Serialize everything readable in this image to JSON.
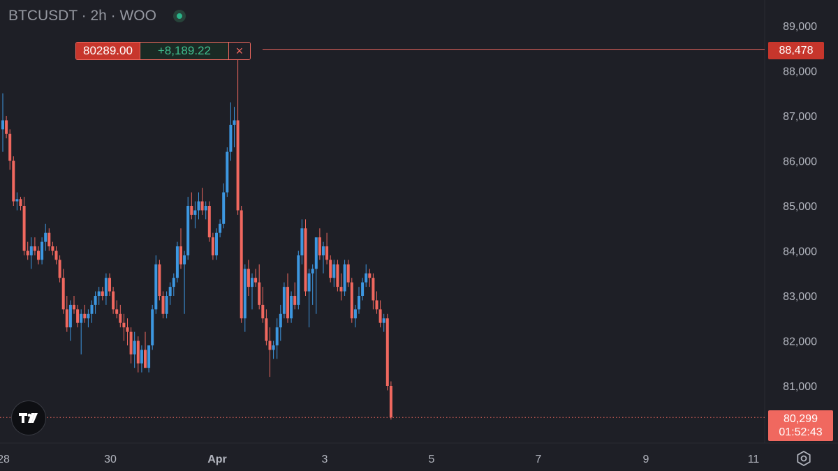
{
  "header": {
    "symbol_title": "BTCUSDT · 2h · WOO",
    "status_icon": "market-open-dot-icon"
  },
  "order_line": {
    "price": "80289.00",
    "pnl": "+8,189.22",
    "close_glyph": "×",
    "level_label": "88,478"
  },
  "current_price": {
    "price": "80,299",
    "countdown": "01:52:43"
  },
  "icons": {
    "logo": "tradingview-logo-icon",
    "settings": "settings-gear-icon"
  },
  "colors": {
    "up": "#3d97e0",
    "down": "#f0685f",
    "background": "#1e1f26",
    "axis_text": "#b2b5be"
  },
  "chart_data": {
    "type": "candlestick",
    "y_axis": {
      "ticks": [
        81000,
        82000,
        83000,
        84000,
        85000,
        86000,
        87000,
        88000,
        89000
      ],
      "tick_labels": [
        "81,000",
        "82,000",
        "83,000",
        "84,000",
        "85,000",
        "86,000",
        "87,000",
        "88,000",
        "89,000"
      ],
      "range": [
        79800,
        89500
      ]
    },
    "x_axis": {
      "tick_labels": [
        "28",
        "30",
        "Apr",
        "3",
        "5",
        "7",
        "9",
        "11"
      ]
    },
    "candles_ohlc": [
      [
        86700,
        87500,
        86200,
        86900
      ],
      [
        86900,
        87000,
        86500,
        86600
      ],
      [
        86600,
        86700,
        85800,
        86000
      ],
      [
        86000,
        86100,
        85000,
        85100
      ],
      [
        85100,
        85300,
        84900,
        85150
      ],
      [
        85150,
        85200,
        84900,
        85000
      ],
      [
        85000,
        85200,
        83900,
        84000
      ],
      [
        84000,
        84200,
        83800,
        83900
      ],
      [
        83900,
        84300,
        83600,
        84100
      ],
      [
        84100,
        84300,
        83900,
        84000
      ],
      [
        84000,
        84100,
        83700,
        83800
      ],
      [
        83800,
        84300,
        83700,
        84200
      ],
      [
        84200,
        84600,
        84000,
        84400
      ],
      [
        84400,
        84500,
        84000,
        84100
      ],
      [
        84100,
        84200,
        83900,
        84000
      ],
      [
        84000,
        84100,
        83700,
        83800
      ],
      [
        83800,
        83900,
        83300,
        83400
      ],
      [
        83400,
        83600,
        82600,
        82700
      ],
      [
        82700,
        83000,
        82200,
        82300
      ],
      [
        82300,
        82900,
        82000,
        82800
      ],
      [
        82800,
        83000,
        82600,
        82700
      ],
      [
        82700,
        82800,
        82300,
        82400
      ],
      [
        82400,
        82700,
        81700,
        82600
      ],
      [
        82600,
        82800,
        82400,
        82500
      ],
      [
        82500,
        82700,
        82300,
        82600
      ],
      [
        82600,
        82900,
        82400,
        82800
      ],
      [
        82800,
        83100,
        82600,
        83000
      ],
      [
        83000,
        83200,
        82800,
        83100
      ],
      [
        83100,
        83200,
        82900,
        83000
      ],
      [
        83000,
        83500,
        82800,
        83400
      ],
      [
        83400,
        83500,
        83000,
        83100
      ],
      [
        83100,
        83200,
        82600,
        82700
      ],
      [
        82700,
        82900,
        82500,
        82600
      ],
      [
        82600,
        82800,
        82300,
        82400
      ],
      [
        82400,
        82600,
        82000,
        82300
      ],
      [
        82300,
        82500,
        81900,
        82200
      ],
      [
        82200,
        82300,
        81500,
        81700
      ],
      [
        81700,
        82200,
        81400,
        82000
      ],
      [
        82000,
        82100,
        81300,
        81500
      ],
      [
        81500,
        81900,
        81300,
        81800
      ],
      [
        81800,
        82200,
        81500,
        81400
      ],
      [
        81400,
        81900,
        81300,
        81900
      ],
      [
        81900,
        82800,
        81800,
        82700
      ],
      [
        82700,
        83900,
        82600,
        83700
      ],
      [
        83700,
        83800,
        82900,
        83000
      ],
      [
        83000,
        83100,
        82500,
        82600
      ],
      [
        82600,
        83100,
        82500,
        83000
      ],
      [
        83000,
        83300,
        82800,
        83200
      ],
      [
        83200,
        83500,
        83000,
        83400
      ],
      [
        83400,
        84200,
        83300,
        84100
      ],
      [
        84100,
        84500,
        83600,
        83700
      ],
      [
        83700,
        84000,
        82600,
        83900
      ],
      [
        83900,
        85200,
        83800,
        85000
      ],
      [
        85000,
        85300,
        84700,
        84800
      ],
      [
        84800,
        85100,
        84500,
        84900
      ],
      [
        84900,
        85300,
        84700,
        85100
      ],
      [
        85100,
        85400,
        84800,
        84900
      ],
      [
        84900,
        85100,
        84700,
        85000
      ],
      [
        85000,
        85100,
        84200,
        84300
      ],
      [
        84300,
        84400,
        83800,
        83900
      ],
      [
        83900,
        84500,
        83800,
        84400
      ],
      [
        84400,
        84700,
        84300,
        84600
      ],
      [
        84600,
        85500,
        84500,
        85300
      ],
      [
        85300,
        86300,
        85200,
        86200
      ],
      [
        86200,
        87300,
        86000,
        86800
      ],
      [
        86800,
        87200,
        86300,
        86900
      ],
      [
        86900,
        88478,
        84800,
        84900
      ],
      [
        84900,
        85000,
        82400,
        82500
      ],
      [
        82500,
        83700,
        82200,
        83600
      ],
      [
        83600,
        83800,
        83000,
        83200
      ],
      [
        83200,
        83500,
        82700,
        83400
      ],
      [
        83400,
        83600,
        83200,
        83300
      ],
      [
        83300,
        83700,
        82700,
        82800
      ],
      [
        82800,
        83200,
        82400,
        82500
      ],
      [
        82500,
        82700,
        81900,
        82000
      ],
      [
        82000,
        82300,
        81200,
        81800
      ],
      [
        81800,
        82000,
        81600,
        81900
      ],
      [
        81900,
        82500,
        81600,
        82300
      ],
      [
        82300,
        82800,
        82000,
        82600
      ],
      [
        82600,
        83300,
        82500,
        83200
      ],
      [
        83200,
        83500,
        82400,
        82500
      ],
      [
        82500,
        83100,
        82400,
        83000
      ],
      [
        83000,
        83300,
        82700,
        82800
      ],
      [
        82800,
        84000,
        82700,
        83900
      ],
      [
        83900,
        84700,
        83700,
        84500
      ],
      [
        84500,
        84700,
        83000,
        83100
      ],
      [
        83100,
        83600,
        82300,
        83500
      ],
      [
        83500,
        83700,
        82800,
        83600
      ],
      [
        83600,
        84000,
        82600,
        84300
      ],
      [
        84300,
        84500,
        83800,
        83900
      ],
      [
        83900,
        84200,
        83500,
        84100
      ],
      [
        84100,
        84400,
        83700,
        83800
      ],
      [
        83800,
        83900,
        83300,
        83400
      ],
      [
        83400,
        83800,
        83200,
        83700
      ],
      [
        83700,
        83800,
        83100,
        83200
      ],
      [
        83200,
        83500,
        82900,
        83100
      ],
      [
        83100,
        83800,
        83000,
        83700
      ],
      [
        83700,
        83800,
        83200,
        83300
      ],
      [
        83300,
        83400,
        82400,
        82500
      ],
      [
        82500,
        82800,
        82300,
        82700
      ],
      [
        82700,
        83200,
        82600,
        83000
      ],
      [
        83000,
        83400,
        82900,
        83300
      ],
      [
        83300,
        83700,
        83200,
        83500
      ],
      [
        83500,
        83600,
        83200,
        83400
      ],
      [
        83400,
        83500,
        82700,
        82900
      ],
      [
        82900,
        83100,
        82600,
        82700
      ],
      [
        82700,
        82900,
        82300,
        82400
      ],
      [
        82400,
        82600,
        82200,
        82500
      ],
      [
        82500,
        82600,
        80900,
        81000
      ],
      [
        81000,
        81100,
        80250,
        80299
      ]
    ],
    "horizontal_lines": [
      {
        "price": 88478,
        "label": "88,478",
        "color": "#f0685f",
        "style": "solid"
      },
      {
        "price": 80299,
        "label": "80,299",
        "color": "#f0685f",
        "style": "dotted"
      }
    ],
    "grid": false,
    "legend": "none"
  }
}
